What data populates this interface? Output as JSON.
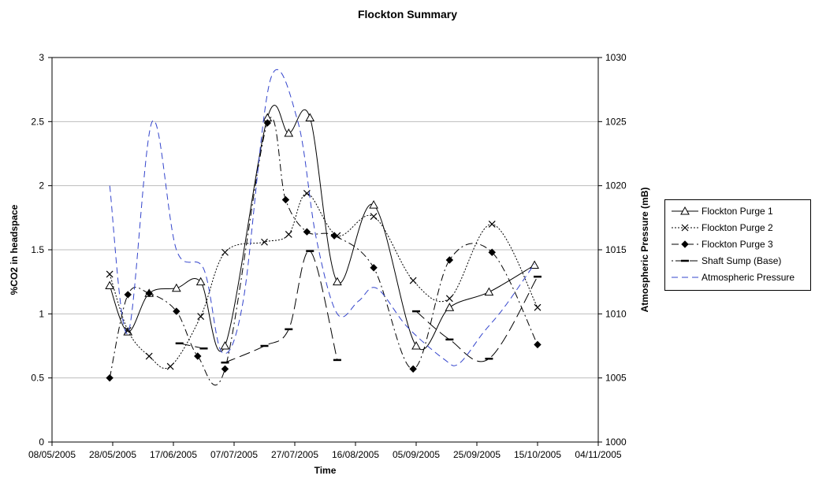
{
  "chart_data": {
    "type": "line",
    "title": "Flockton Summary",
    "xlabel": "Time",
    "ylabel_left": "%CO2 in headspace",
    "ylabel_right": "Atmospheric Pressure (mB)",
    "x_ticks": [
      "08/05/2005",
      "28/05/2005",
      "17/06/2005",
      "07/07/2005",
      "27/07/2005",
      "16/08/2005",
      "05/09/2005",
      "25/09/2005",
      "15/10/2005",
      "04/11/2005"
    ],
    "x_range": [
      "08/05/2005",
      "04/11/2005"
    ],
    "ylim_left": [
      0,
      3
    ],
    "yticks_left": [
      "0",
      "0.5",
      "1",
      "1.5",
      "2",
      "2.5",
      "3"
    ],
    "ylim_right": [
      1000,
      1030
    ],
    "yticks_right": [
      "1000",
      "1005",
      "1010",
      "1015",
      "1020",
      "1025",
      "1030"
    ],
    "grid": "horizontal",
    "legend_position": "right",
    "series": [
      {
        "name": "Flockton Purge 1",
        "axis": "left",
        "color": "#000000",
        "marker": "triangle",
        "dash": "",
        "points": [
          [
            "27/05/2005",
            1.22
          ],
          [
            "02/06/2005",
            0.86
          ],
          [
            "09/06/2005",
            1.16
          ],
          [
            "18/06/2005",
            1.2
          ],
          [
            "26/06/2005",
            1.25
          ],
          [
            "04/07/2005",
            0.75
          ],
          [
            "18/07/2005",
            2.53
          ],
          [
            "25/07/2005",
            2.41
          ],
          [
            "01/08/2005",
            2.53
          ],
          [
            "10/08/2005",
            1.25
          ],
          [
            "22/08/2005",
            1.85
          ],
          [
            "05/09/2005",
            0.75
          ],
          [
            "16/09/2005",
            1.05
          ],
          [
            "29/09/2005",
            1.17
          ],
          [
            "14/10/2005",
            1.38
          ]
        ]
      },
      {
        "name": "Flockton Purge 2",
        "axis": "left",
        "color": "#000000",
        "marker": "x",
        "dash": "2,2",
        "points": [
          [
            "27/05/2005",
            1.31
          ],
          [
            "02/06/2005",
            0.87
          ],
          [
            "09/06/2005",
            0.67
          ],
          [
            "16/06/2005",
            0.59
          ],
          [
            "26/06/2005",
            0.98
          ],
          [
            "04/07/2005",
            1.48
          ],
          [
            "17/07/2005",
            1.56
          ],
          [
            "25/07/2005",
            1.62
          ],
          [
            "31/07/2005",
            1.94
          ],
          [
            "10/08/2005",
            1.61
          ],
          [
            "22/08/2005",
            1.76
          ],
          [
            "04/09/2005",
            1.26
          ],
          [
            "16/09/2005",
            1.12
          ],
          [
            "30/09/2005",
            1.7
          ],
          [
            "15/10/2005",
            1.05
          ]
        ]
      },
      {
        "name": "Flockton Purge 3",
        "axis": "left",
        "color": "#000000",
        "marker": "diamond",
        "dash": "9,4,2,4",
        "points": [
          [
            "27/05/2005",
            0.5
          ],
          [
            "02/06/2005",
            1.15
          ],
          [
            "09/06/2005",
            1.16
          ],
          [
            "18/06/2005",
            1.02
          ],
          [
            "25/06/2005",
            0.67
          ],
          [
            "04/07/2005",
            0.57
          ],
          [
            "18/07/2005",
            2.49
          ],
          [
            "24/07/2005",
            1.89
          ],
          [
            "31/07/2005",
            1.64
          ],
          [
            "09/08/2005",
            1.61
          ],
          [
            "22/08/2005",
            1.36
          ],
          [
            "04/09/2005",
            0.57
          ],
          [
            "16/09/2005",
            1.42
          ],
          [
            "30/09/2005",
            1.48
          ],
          [
            "15/10/2005",
            0.76
          ]
        ]
      },
      {
        "name": "Shaft Sump (Base)",
        "axis": "left",
        "color": "#000000",
        "marker": "dash",
        "dash": "14,6",
        "points": [
          [
            "19/06/2005",
            0.77
          ],
          [
            "27/06/2005",
            0.73
          ],
          [
            "04/07/2005",
            0.62
          ],
          [
            "17/07/2005",
            0.75
          ],
          [
            "25/07/2005",
            0.88
          ],
          [
            "01/08/2005",
            1.49
          ],
          [
            "10/08/2005",
            0.64
          ],
          [
            "05/09/2005",
            1.02
          ],
          [
            "16/09/2005",
            0.8
          ],
          [
            "29/09/2005",
            0.65
          ],
          [
            "15/10/2005",
            1.29
          ]
        ]
      },
      {
        "name": "Atmospheric Pressure",
        "axis": "right",
        "color": "#3344cc",
        "marker": "none",
        "dash": "8,5",
        "points": [
          [
            "27/05/2005",
            1020
          ],
          [
            "02/06/2005",
            1008.5
          ],
          [
            "10/06/2005",
            1025
          ],
          [
            "18/06/2005",
            1015
          ],
          [
            "27/06/2005",
            1013.5
          ],
          [
            "03/07/2005",
            1007
          ],
          [
            "10/07/2005",
            1011
          ],
          [
            "19/07/2005",
            1028.3
          ],
          [
            "28/07/2005",
            1025
          ],
          [
            "03/08/2005",
            1016
          ],
          [
            "10/08/2005",
            1010
          ],
          [
            "17/08/2005",
            1011
          ],
          [
            "23/08/2005",
            1012
          ],
          [
            "02/09/2005",
            1009
          ],
          [
            "14/09/2005",
            1006.5
          ],
          [
            "19/09/2005",
            1006.1
          ],
          [
            "27/09/2005",
            1008.5
          ],
          [
            "04/10/2005",
            1010.5
          ],
          [
            "14/10/2005",
            1013.9
          ]
        ]
      }
    ]
  }
}
